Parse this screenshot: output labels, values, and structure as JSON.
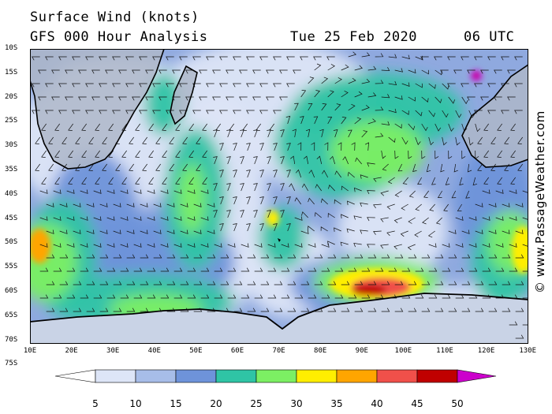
{
  "header": {
    "title": "Surface Wind (knots)",
    "subtitle": "GFS 000 Hour Analysis",
    "date": "Tue 25 Feb 2020",
    "time": "06 UTC"
  },
  "watermark": "© www.PassageWeather.com",
  "map": {
    "lat_labels": [
      "10S",
      "15S",
      "20S",
      "25S",
      "30S",
      "35S",
      "40S",
      "45S",
      "50S",
      "55S",
      "60S",
      "65S",
      "70S",
      "75S"
    ],
    "lon_labels": [
      "10E",
      "20E",
      "30E",
      "40E",
      "50E",
      "60E",
      "70E",
      "80E",
      "90E",
      "100E",
      "110E",
      "120E",
      "130E"
    ],
    "wind_fields": [
      {
        "name": "roaring-forties-jet",
        "speed_knots": 45
      },
      {
        "name": "agulhas-return-band",
        "speed_knots": 30
      },
      {
        "name": "mozambique-channel-band",
        "speed_knots": 25
      },
      {
        "name": "west-australia-band",
        "speed_knots": 35
      },
      {
        "name": "south-atlantic-edge",
        "speed_knots": 40
      },
      {
        "name": "tropical-cyclone-nw-australia",
        "speed_knots": 50
      }
    ]
  },
  "colorbar": {
    "labels": [
      "5",
      "10",
      "15",
      "20",
      "25",
      "30",
      "35",
      "40",
      "45",
      "50"
    ],
    "colors": [
      "#ffffff",
      "#dde5f7",
      "#a7bde8",
      "#6e93da",
      "#2fc4a5",
      "#7cef63",
      "#ffee00",
      "#ffa500",
      "#f0504a",
      "#c00000",
      "#cc00cc"
    ]
  }
}
